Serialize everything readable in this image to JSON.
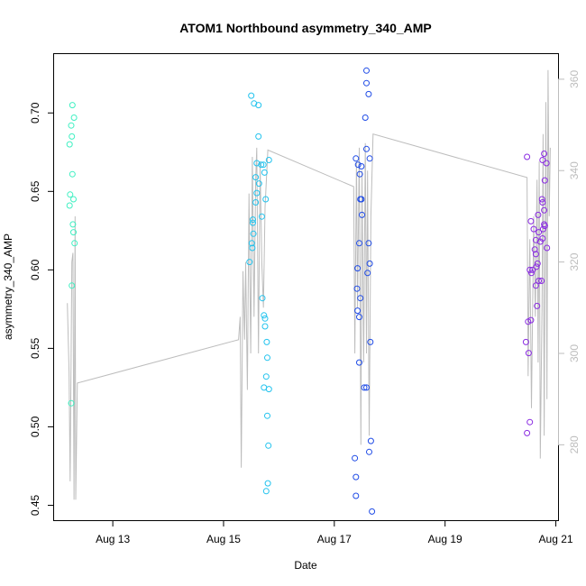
{
  "chart_data": {
    "type": "scatter",
    "title": "ATOM1 Northbound asymmetry_340_AMP",
    "xlabel": "Date",
    "ylabel": "asymmetry_340_AMP",
    "x_ticks": [
      "Aug 13",
      "Aug 15",
      "Aug 17",
      "Aug 19",
      "Aug 21"
    ],
    "x_tick_values": [
      13,
      15,
      17,
      19,
      21
    ],
    "xlim": [
      11.94,
      21.04
    ],
    "ylim": [
      0.4405,
      0.7375
    ],
    "y_ticks": [
      0.45,
      0.5,
      0.55,
      0.6,
      0.65,
      0.7
    ],
    "y_tick_labels": [
      "0.45",
      "0.50",
      "0.55",
      "0.60",
      "0.65",
      "0.70"
    ],
    "y2lim": [
      263.5,
      365.5
    ],
    "y2_ticks": [
      280,
      300,
      320,
      340,
      360
    ],
    "y2_tick_labels": [
      "280",
      "300",
      "320",
      "340",
      "360"
    ],
    "series": [
      {
        "color": "#3FF0C2",
        "points": [
          [
            12.27,
            0.705
          ],
          [
            12.25,
            0.692
          ],
          [
            12.3,
            0.697
          ],
          [
            12.22,
            0.68
          ],
          [
            12.26,
            0.685
          ],
          [
            12.27,
            0.661
          ],
          [
            12.23,
            0.648
          ],
          [
            12.29,
            0.645
          ],
          [
            12.22,
            0.641
          ],
          [
            12.28,
            0.629
          ],
          [
            12.29,
            0.624
          ],
          [
            12.31,
            0.617
          ],
          [
            12.26,
            0.59
          ],
          [
            12.25,
            0.515
          ]
        ]
      },
      {
        "color": "#22C3EE",
        "points": [
          [
            15.5,
            0.711
          ],
          [
            15.55,
            0.706
          ],
          [
            15.63,
            0.705
          ],
          [
            15.63,
            0.685
          ],
          [
            15.82,
            0.67
          ],
          [
            15.6,
            0.668
          ],
          [
            15.68,
            0.667
          ],
          [
            15.72,
            0.667
          ],
          [
            15.74,
            0.662
          ],
          [
            15.58,
            0.659
          ],
          [
            15.64,
            0.655
          ],
          [
            15.6,
            0.649
          ],
          [
            15.76,
            0.645
          ],
          [
            15.58,
            0.643
          ],
          [
            15.69,
            0.634
          ],
          [
            15.53,
            0.63
          ],
          [
            15.53,
            0.632
          ],
          [
            15.54,
            0.623
          ],
          [
            15.51,
            0.617
          ],
          [
            15.52,
            0.614
          ],
          [
            15.47,
            0.605
          ],
          [
            15.7,
            0.582
          ],
          [
            15.73,
            0.571
          ],
          [
            15.75,
            0.569
          ],
          [
            15.75,
            0.564
          ],
          [
            15.78,
            0.554
          ],
          [
            15.79,
            0.544
          ],
          [
            15.77,
            0.532
          ],
          [
            15.73,
            0.525
          ],
          [
            15.82,
            0.524
          ],
          [
            15.79,
            0.507
          ],
          [
            15.81,
            0.488
          ],
          [
            15.8,
            0.464
          ],
          [
            15.77,
            0.459
          ]
        ]
      },
      {
        "color": "#1F4BE6",
        "points": [
          [
            17.58,
            0.727
          ],
          [
            17.58,
            0.719
          ],
          [
            17.62,
            0.712
          ],
          [
            17.56,
            0.697
          ],
          [
            17.58,
            0.677
          ],
          [
            17.39,
            0.671
          ],
          [
            17.64,
            0.671
          ],
          [
            17.43,
            0.667
          ],
          [
            17.49,
            0.666
          ],
          [
            17.46,
            0.661
          ],
          [
            17.49,
            0.645
          ],
          [
            17.47,
            0.645
          ],
          [
            17.5,
            0.635
          ],
          [
            17.45,
            0.617
          ],
          [
            17.62,
            0.617
          ],
          [
            17.64,
            0.604
          ],
          [
            17.42,
            0.601
          ],
          [
            17.6,
            0.598
          ],
          [
            17.41,
            0.588
          ],
          [
            17.47,
            0.582
          ],
          [
            17.42,
            0.574
          ],
          [
            17.45,
            0.57
          ],
          [
            17.65,
            0.554
          ],
          [
            17.45,
            0.541
          ],
          [
            17.54,
            0.525
          ],
          [
            17.58,
            0.525
          ],
          [
            17.66,
            0.491
          ],
          [
            17.37,
            0.48
          ],
          [
            17.63,
            0.484
          ],
          [
            17.39,
            0.468
          ],
          [
            17.39,
            0.456
          ],
          [
            17.68,
            0.446
          ]
        ]
      },
      {
        "color": "#8A2BE2",
        "points": [
          [
            20.48,
            0.672
          ],
          [
            20.79,
            0.674
          ],
          [
            20.76,
            0.67
          ],
          [
            20.83,
            0.668
          ],
          [
            20.8,
            0.657
          ],
          [
            20.75,
            0.645
          ],
          [
            20.76,
            0.643
          ],
          [
            20.79,
            0.638
          ],
          [
            20.68,
            0.635
          ],
          [
            20.55,
            0.631
          ],
          [
            20.79,
            0.629
          ],
          [
            20.77,
            0.626
          ],
          [
            20.8,
            0.628
          ],
          [
            20.6,
            0.626
          ],
          [
            20.69,
            0.624
          ],
          [
            20.72,
            0.618
          ],
          [
            20.64,
            0.619
          ],
          [
            20.76,
            0.62
          ],
          [
            20.62,
            0.613
          ],
          [
            20.84,
            0.614
          ],
          [
            20.64,
            0.61
          ],
          [
            20.67,
            0.604
          ],
          [
            20.53,
            0.6
          ],
          [
            20.58,
            0.6
          ],
          [
            20.65,
            0.602
          ],
          [
            20.56,
            0.598
          ],
          [
            20.69,
            0.593
          ],
          [
            20.74,
            0.593
          ],
          [
            20.64,
            0.59
          ],
          [
            20.66,
            0.577
          ],
          [
            20.55,
            0.568
          ],
          [
            20.5,
            0.567
          ],
          [
            20.46,
            0.554
          ],
          [
            20.51,
            0.547
          ],
          [
            20.53,
            0.503
          ],
          [
            20.48,
            0.496
          ]
        ]
      }
    ],
    "secondary_line": {
      "color": "#bdbdbd",
      "axis": "right",
      "points": [
        [
          12.18,
          311
        ],
        [
          12.21,
          296
        ],
        [
          12.23,
          272
        ],
        [
          12.26,
          320
        ],
        [
          12.28,
          322
        ],
        [
          12.3,
          268
        ],
        [
          12.32,
          330
        ],
        [
          12.33,
          268
        ],
        [
          12.36,
          293.5
        ],
        [
          15.27,
          303
        ],
        [
          15.3,
          308
        ],
        [
          15.32,
          275
        ],
        [
          15.35,
          318
        ],
        [
          15.38,
          303
        ],
        [
          15.4,
          320
        ],
        [
          15.43,
          292
        ],
        [
          15.46,
          335
        ],
        [
          15.49,
          300
        ],
        [
          15.52,
          343
        ],
        [
          15.55,
          308
        ],
        [
          15.58,
          338
        ],
        [
          15.6,
          345
        ],
        [
          15.63,
          300
        ],
        [
          15.66,
          342
        ],
        [
          15.69,
          320
        ],
        [
          15.72,
          310
        ],
        [
          15.75,
          332
        ],
        [
          15.8,
          344.5
        ],
        [
          17.35,
          336.5
        ],
        [
          17.37,
          300
        ],
        [
          17.4,
          342
        ],
        [
          17.42,
          310
        ],
        [
          17.45,
          345
        ],
        [
          17.48,
          280
        ],
        [
          17.5,
          340
        ],
        [
          17.53,
          298
        ],
        [
          17.56,
          346
        ],
        [
          17.58,
          300
        ],
        [
          17.6,
          340
        ],
        [
          17.63,
          282
        ],
        [
          17.66,
          330
        ],
        [
          17.7,
          348
        ],
        [
          20.48,
          338.5
        ],
        [
          20.5,
          295
        ],
        [
          20.53,
          325
        ],
        [
          20.56,
          288
        ],
        [
          20.6,
          330
        ],
        [
          20.63,
          308
        ],
        [
          20.66,
          338
        ],
        [
          20.68,
          298
        ],
        [
          20.7,
          342
        ],
        [
          20.72,
          277
        ],
        [
          20.75,
          310
        ],
        [
          20.77,
          348
        ],
        [
          20.79,
          282
        ],
        [
          20.82,
          355
        ],
        [
          20.84,
          290
        ],
        [
          20.86,
          362
        ],
        [
          20.88,
          330
        ],
        [
          20.9,
          345
        ]
      ]
    },
    "grid": false,
    "legend": "none"
  }
}
